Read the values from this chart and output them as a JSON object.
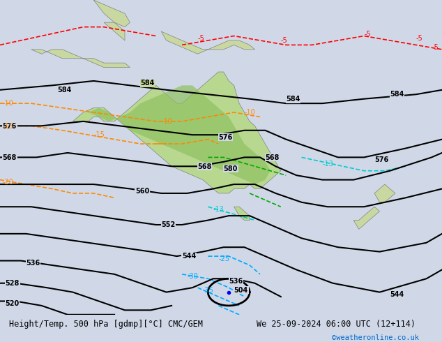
{
  "title_left": "Height/Temp. 500 hPa [gdmp][°C] CMC/GEM",
  "title_right": "We 25-09-2024 06:00 UTC (12+114)",
  "credit": "©weatheronline.co.uk",
  "background_color": "#d0d8e8",
  "land_color": "#c8d8a0",
  "fig_width": 6.34,
  "fig_height": 4.9,
  "dpi": 100
}
